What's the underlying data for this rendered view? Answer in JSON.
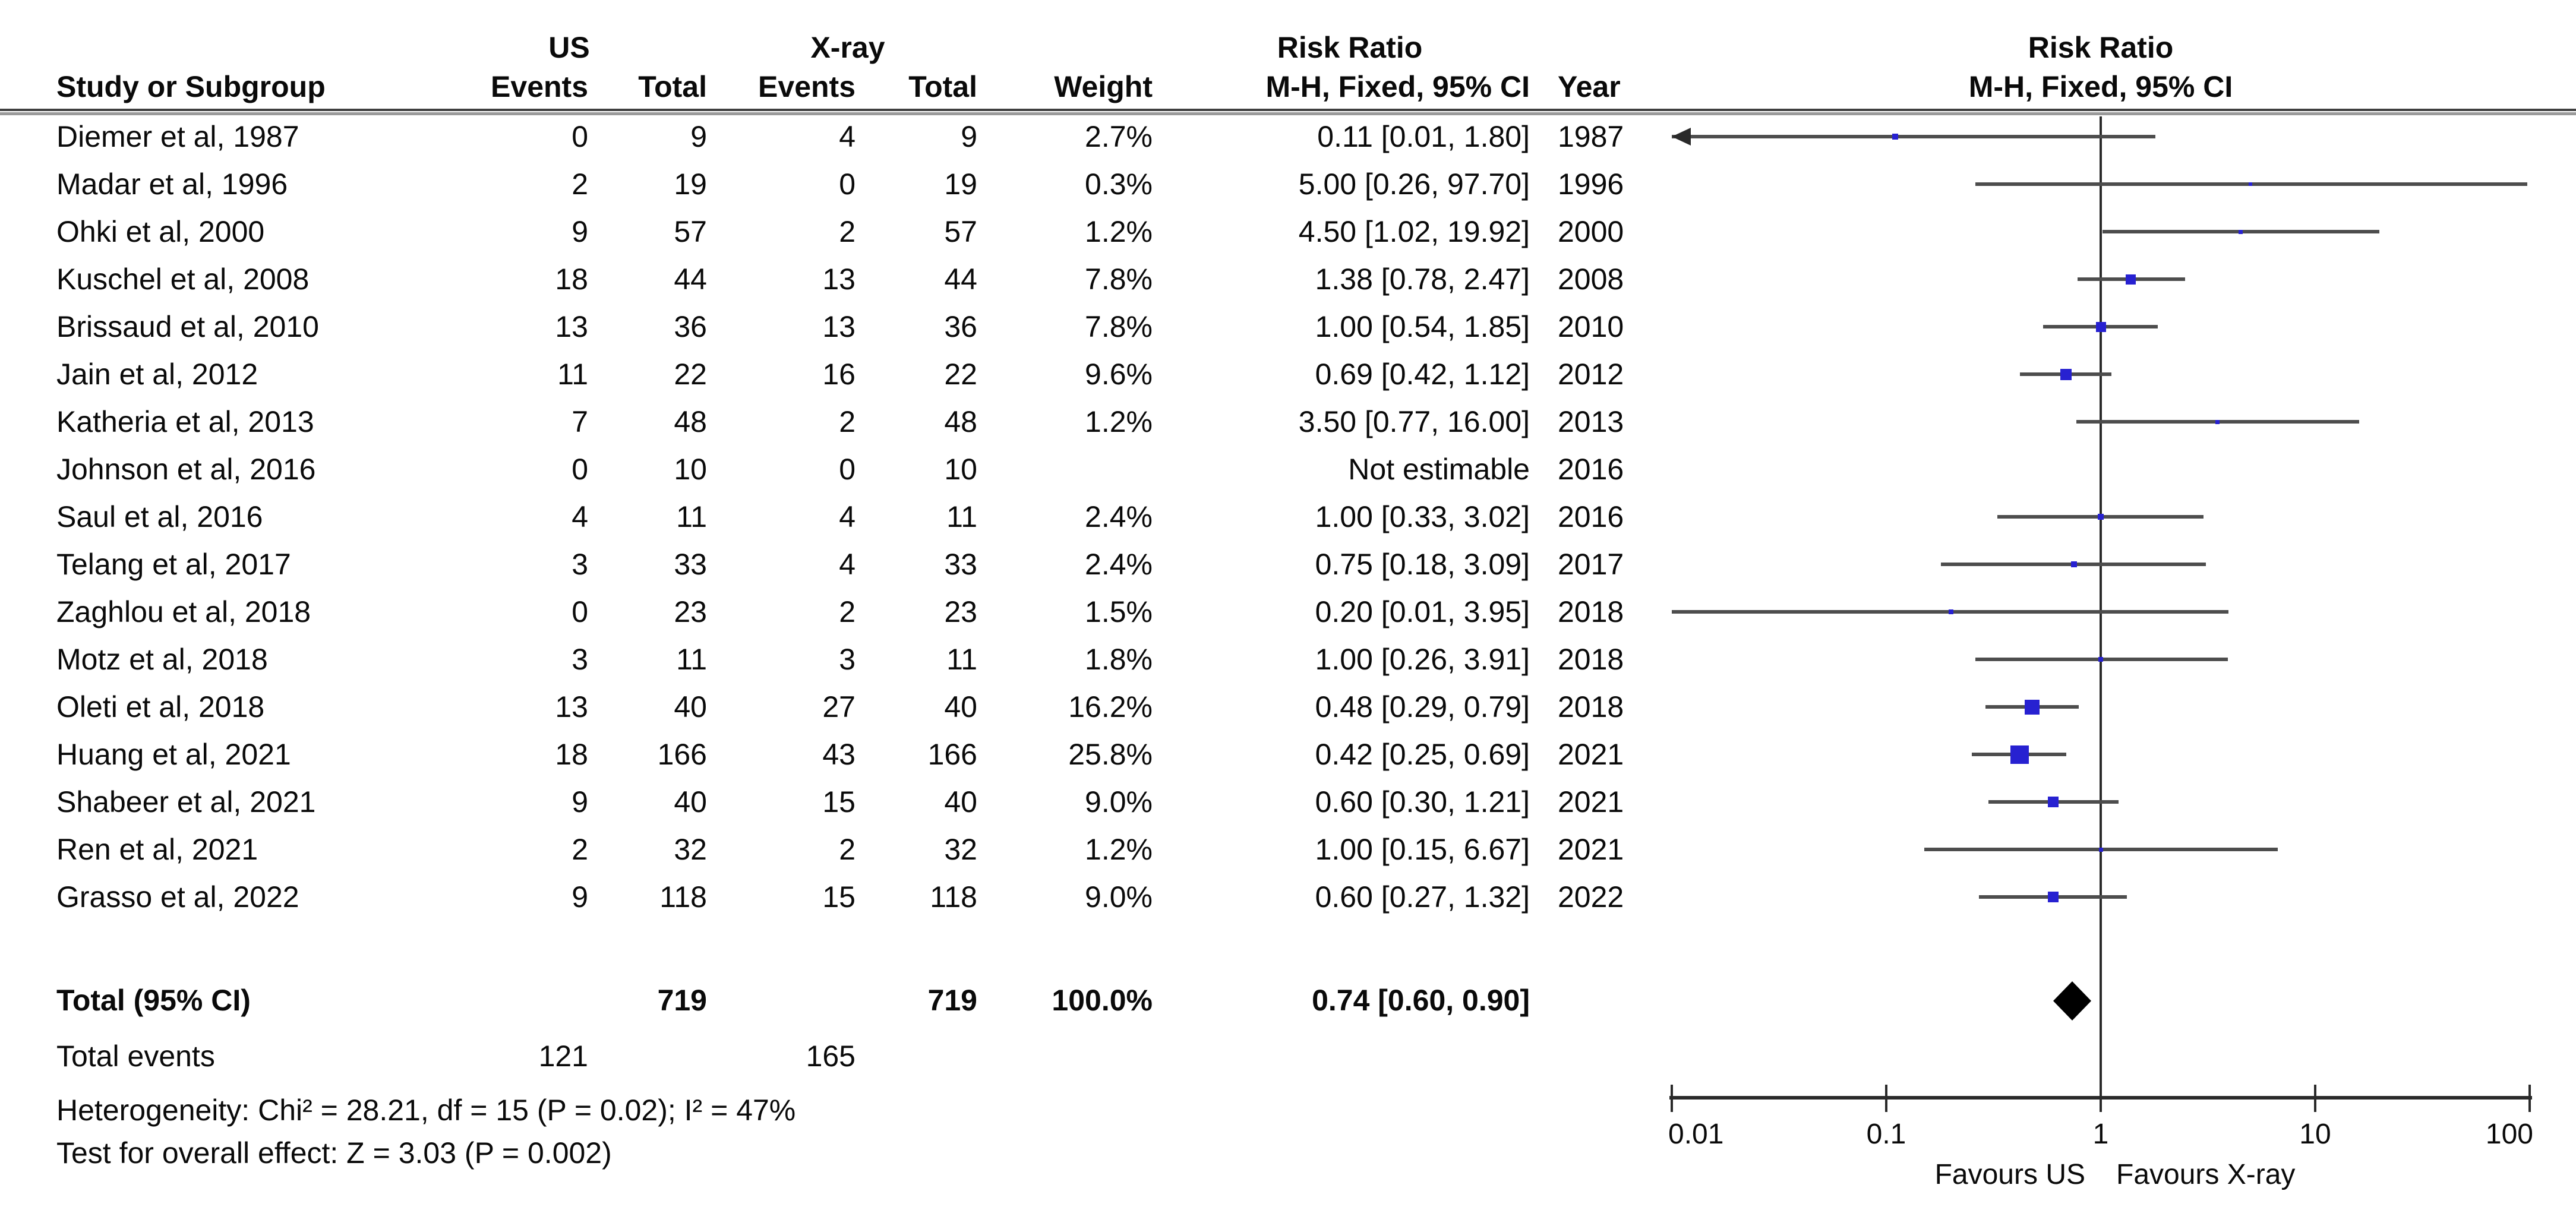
{
  "header": {
    "group1": "US",
    "group2": "X-ray",
    "study_col": "Study or Subgroup",
    "events_col_1": "Events",
    "total_col_1": "Total",
    "events_col_2": "Events",
    "total_col_2": "Total",
    "weight_col": "Weight",
    "effect_col_line1": "Risk Ratio",
    "effect_col_line2": "M-H, Fixed, 95% CI",
    "year_col": "Year",
    "plot_col_line1": "Risk Ratio",
    "plot_col_line2": "M-H, Fixed, 95% CI"
  },
  "chart_data": {
    "type": "scatter",
    "subtype": "forest-plot-meta-analysis",
    "effect_measure": "Risk Ratio, M-H, Fixed, 95% CI",
    "x_scale": "log10",
    "x_min": 0.01,
    "x_max": 100,
    "x_ticks": [
      {
        "value": 0.01,
        "label": "0.01"
      },
      {
        "value": 0.1,
        "label": "0.1"
      },
      {
        "value": 1,
        "label": "1"
      },
      {
        "value": 10,
        "label": "10"
      },
      {
        "value": 100,
        "label": "100"
      }
    ],
    "favours_left": "Favours US",
    "favours_right": "Favours X-ray",
    "studies": [
      {
        "name": "Diemer et al, 1987",
        "us_events": "0",
        "us_total": "9",
        "xray_events": "4",
        "xray_total": "9",
        "weight": "2.7%",
        "weight_val": 2.7,
        "ci_text": "0.11 [0.01, 1.80]",
        "rr": 0.11,
        "lo": 0.01,
        "hi": 1.8,
        "year": "1987",
        "estimable": true,
        "arrow_left": true
      },
      {
        "name": "Madar et al, 1996",
        "us_events": "2",
        "us_total": "19",
        "xray_events": "0",
        "xray_total": "19",
        "weight": "0.3%",
        "weight_val": 0.3,
        "ci_text": "5.00 [0.26, 97.70]",
        "rr": 5.0,
        "lo": 0.26,
        "hi": 97.7,
        "year": "1996",
        "estimable": true,
        "arrow_left": false
      },
      {
        "name": "Ohki et al, 2000",
        "us_events": "9",
        "us_total": "57",
        "xray_events": "2",
        "xray_total": "57",
        "weight": "1.2%",
        "weight_val": 1.2,
        "ci_text": "4.50 [1.02, 19.92]",
        "rr": 4.5,
        "lo": 1.02,
        "hi": 19.92,
        "year": "2000",
        "estimable": true,
        "arrow_left": false
      },
      {
        "name": "Kuschel et al, 2008",
        "us_events": "18",
        "us_total": "44",
        "xray_events": "13",
        "xray_total": "44",
        "weight": "7.8%",
        "weight_val": 7.8,
        "ci_text": "1.38 [0.78, 2.47]",
        "rr": 1.38,
        "lo": 0.78,
        "hi": 2.47,
        "year": "2008",
        "estimable": true,
        "arrow_left": false
      },
      {
        "name": "Brissaud et al, 2010",
        "us_events": "13",
        "us_total": "36",
        "xray_events": "13",
        "xray_total": "36",
        "weight": "7.8%",
        "weight_val": 7.8,
        "ci_text": "1.00 [0.54, 1.85]",
        "rr": 1.0,
        "lo": 0.54,
        "hi": 1.85,
        "year": "2010",
        "estimable": true,
        "arrow_left": false
      },
      {
        "name": "Jain et al, 2012",
        "us_events": "11",
        "us_total": "22",
        "xray_events": "16",
        "xray_total": "22",
        "weight": "9.6%",
        "weight_val": 9.6,
        "ci_text": "0.69 [0.42, 1.12]",
        "rr": 0.69,
        "lo": 0.42,
        "hi": 1.12,
        "year": "2012",
        "estimable": true,
        "arrow_left": false
      },
      {
        "name": "Katheria et al, 2013",
        "us_events": "7",
        "us_total": "48",
        "xray_events": "2",
        "xray_total": "48",
        "weight": "1.2%",
        "weight_val": 1.2,
        "ci_text": "3.50 [0.77, 16.00]",
        "rr": 3.5,
        "lo": 0.77,
        "hi": 16.0,
        "year": "2013",
        "estimable": true,
        "arrow_left": false
      },
      {
        "name": "Johnson et al, 2016",
        "us_events": "0",
        "us_total": "10",
        "xray_events": "0",
        "xray_total": "10",
        "weight": "",
        "weight_val": 0,
        "ci_text": "Not estimable",
        "rr": null,
        "lo": null,
        "hi": null,
        "year": "2016",
        "estimable": false,
        "arrow_left": false
      },
      {
        "name": "Saul et al, 2016",
        "us_events": "4",
        "us_total": "11",
        "xray_events": "4",
        "xray_total": "11",
        "weight": "2.4%",
        "weight_val": 2.4,
        "ci_text": "1.00 [0.33, 3.02]",
        "rr": 1.0,
        "lo": 0.33,
        "hi": 3.02,
        "year": "2016",
        "estimable": true,
        "arrow_left": false
      },
      {
        "name": "Telang et al, 2017",
        "us_events": "3",
        "us_total": "33",
        "xray_events": "4",
        "xray_total": "33",
        "weight": "2.4%",
        "weight_val": 2.4,
        "ci_text": "0.75 [0.18, 3.09]",
        "rr": 0.75,
        "lo": 0.18,
        "hi": 3.09,
        "year": "2017",
        "estimable": true,
        "arrow_left": false
      },
      {
        "name": "Zaghlou et al, 2018",
        "us_events": "0",
        "us_total": "23",
        "xray_events": "2",
        "xray_total": "23",
        "weight": "1.5%",
        "weight_val": 1.5,
        "ci_text": "0.20 [0.01, 3.95]",
        "rr": 0.2,
        "lo": 0.01,
        "hi": 3.95,
        "year": "2018",
        "estimable": true,
        "arrow_left": false
      },
      {
        "name": "Motz et al, 2018",
        "us_events": "3",
        "us_total": "11",
        "xray_events": "3",
        "xray_total": "11",
        "weight": "1.8%",
        "weight_val": 1.8,
        "ci_text": "1.00 [0.26, 3.91]",
        "rr": 1.0,
        "lo": 0.26,
        "hi": 3.91,
        "year": "2018",
        "estimable": true,
        "arrow_left": false
      },
      {
        "name": "Oleti et al, 2018",
        "us_events": "13",
        "us_total": "40",
        "xray_events": "27",
        "xray_total": "40",
        "weight": "16.2%",
        "weight_val": 16.2,
        "ci_text": "0.48 [0.29, 0.79]",
        "rr": 0.48,
        "lo": 0.29,
        "hi": 0.79,
        "year": "2018",
        "estimable": true,
        "arrow_left": false
      },
      {
        "name": "Huang et al, 2021",
        "us_events": "18",
        "us_total": "166",
        "xray_events": "43",
        "xray_total": "166",
        "weight": "25.8%",
        "weight_val": 25.8,
        "ci_text": "0.42 [0.25, 0.69]",
        "rr": 0.42,
        "lo": 0.25,
        "hi": 0.69,
        "year": "2021",
        "estimable": true,
        "arrow_left": false
      },
      {
        "name": "Shabeer et al, 2021",
        "us_events": "9",
        "us_total": "40",
        "xray_events": "15",
        "xray_total": "40",
        "weight": "9.0%",
        "weight_val": 9.0,
        "ci_text": "0.60 [0.30, 1.21]",
        "rr": 0.6,
        "lo": 0.3,
        "hi": 1.21,
        "year": "2021",
        "estimable": true,
        "arrow_left": false
      },
      {
        "name": "Ren et al, 2021",
        "us_events": "2",
        "us_total": "32",
        "xray_events": "2",
        "xray_total": "32",
        "weight": "1.2%",
        "weight_val": 1.2,
        "ci_text": "1.00 [0.15, 6.67]",
        "rr": 1.0,
        "lo": 0.15,
        "hi": 6.67,
        "year": "2021",
        "estimable": true,
        "arrow_left": false
      },
      {
        "name": "Grasso et al, 2022",
        "us_events": "9",
        "us_total": "118",
        "xray_events": "15",
        "xray_total": "118",
        "weight": "9.0%",
        "weight_val": 9.0,
        "ci_text": "0.60 [0.27, 1.32]",
        "rr": 0.6,
        "lo": 0.27,
        "hi": 1.32,
        "year": "2022",
        "estimable": true,
        "arrow_left": false
      }
    ],
    "total_row": {
      "label": "Total (95% CI)",
      "us_total": "719",
      "xray_total": "719",
      "weight": "100.0%",
      "ci_text": "0.74 [0.60, 0.90]",
      "rr": 0.74,
      "lo": 0.6,
      "hi": 0.9
    },
    "total_events": {
      "label": "Total events",
      "us": "121",
      "xray": "165"
    },
    "heterogeneity": "Heterogeneity: Chi² = 28.21, df = 15 (P = 0.02); I² = 47%",
    "overall_effect": "Test for overall effect: Z = 3.03 (P = 0.002)"
  },
  "colors": {
    "marker_blue": "#2721d1",
    "ci_line": "#4d4d4d",
    "axis": "#2a2a2a",
    "diamond": "#000000",
    "rule_dark": "#3f3f3f",
    "rule_light": "#9a9a9a"
  }
}
